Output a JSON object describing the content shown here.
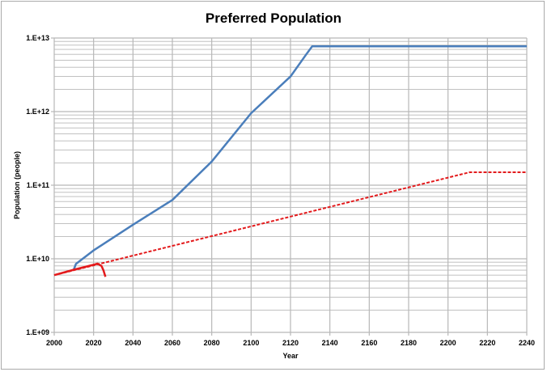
{
  "chart_data": {
    "type": "line",
    "title": "Preferred Population",
    "xlabel": "Year",
    "ylabel": "Population (people)",
    "xlim": [
      2000,
      2240
    ],
    "ylim": [
      1000000000.0,
      10000000000000.0
    ],
    "yscale": "log",
    "grid": true,
    "x_ticks": [
      "2000",
      "2020",
      "2040",
      "2060",
      "2080",
      "2100",
      "2120",
      "2140",
      "2160",
      "2180",
      "2200",
      "2220",
      "2240"
    ],
    "y_ticks": [
      "1.E+09",
      "1.E+10",
      "1.E+11",
      "1.E+12",
      "1.E+13"
    ],
    "series": [
      {
        "name": "blue",
        "color": "#4a7ebb",
        "style": "solid",
        "x": [
          2010,
          2011,
          2020,
          2040,
          2060,
          2080,
          2100,
          2120,
          2128,
          2131,
          2240
        ],
        "y": [
          7200000000.0,
          8500000000.0,
          13000000000.0,
          29000000000.0,
          63000000000.0,
          210000000000.0,
          950000000000.0,
          3000000000000.0,
          6000000000000.0,
          7700000000000.0,
          7700000000000.0
        ]
      },
      {
        "name": "red-dashed",
        "color": "#e31a1c",
        "style": "dashed",
        "x": [
          2000,
          2211,
          2240
        ],
        "y": [
          6000000000.0,
          150000000000.0,
          150000000000.0
        ]
      },
      {
        "name": "red-solid",
        "color": "#e31a1c",
        "style": "solid",
        "x": [
          2000,
          2010,
          2020,
          2022,
          2024,
          2025,
          2026
        ],
        "y": [
          6000000000.0,
          7100000000.0,
          8300000000.0,
          8600000000.0,
          8000000000.0,
          7000000000.0,
          5700000000.0
        ]
      }
    ]
  }
}
